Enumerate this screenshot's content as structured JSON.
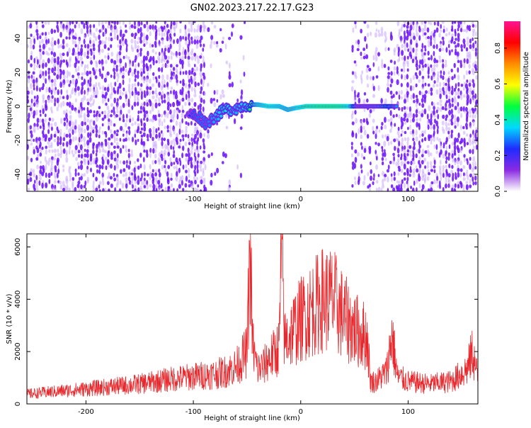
{
  "title": "GN02.2023.217.22.17.G23",
  "colors": {
    "background": "#ffffff",
    "axis": "#000000",
    "snr_line": "#e8282c",
    "spec_bg_dot": "#6a0dff",
    "spec_light_dot": "#c9a8ff"
  },
  "chart_data": [
    {
      "type": "heatmap",
      "title": "GN02.2023.217.22.17.G23",
      "xlabel": "Height of straight line (km)",
      "ylabel": "Frequency (Hz)",
      "xlim": [
        -255,
        165
      ],
      "ylim": [
        -50,
        50
      ],
      "xticks": [
        -200,
        -100,
        0,
        100
      ],
      "xtick_labels": [
        "-200",
        "-100",
        "0",
        "100"
      ],
      "yticks": [
        -40,
        -20,
        0,
        20,
        40
      ],
      "ytick_labels": [
        "-40",
        "-20",
        "0",
        "20",
        "40"
      ],
      "colorbar": {
        "label": "Normalized spectral amplitude",
        "range": [
          0,
          0.95
        ],
        "ticks": [
          0.0,
          0.2,
          0.4,
          0.6,
          0.8
        ],
        "tick_labels": [
          "0.0",
          "0.2",
          "0.4",
          "0.6",
          "0.8"
        ],
        "colormap": [
          "#ffffff",
          "#8a2be2",
          "#1f2bff",
          "#00d9ff",
          "#00ff3c",
          "#ffff00",
          "#ff8c00",
          "#ff0000",
          "#ff1493"
        ]
      },
      "noise_regions": [
        {
          "x": [
            -255,
            -90
          ],
          "density": "dense"
        },
        {
          "x": [
            -90,
            -50
          ],
          "density": "light"
        },
        {
          "x": [
            -50,
            47
          ],
          "density": "empty"
        },
        {
          "x": [
            47,
            90
          ],
          "density": "medium"
        },
        {
          "x": [
            90,
            165
          ],
          "density": "dense"
        }
      ],
      "signal_track": [
        {
          "x": -105,
          "freq": -4,
          "amp": 0.25
        },
        {
          "x": -95,
          "freq": -6,
          "amp": 0.3
        },
        {
          "x": -88,
          "freq": -10,
          "amp": 0.3
        },
        {
          "x": -80,
          "freq": -6,
          "amp": 0.35
        },
        {
          "x": -70,
          "freq": -2,
          "amp": 0.4
        },
        {
          "x": -60,
          "freq": -1,
          "amp": 0.35
        },
        {
          "x": -50,
          "freq": 1,
          "amp": 0.4
        },
        {
          "x": -40,
          "freq": 1,
          "amp": 0.75
        },
        {
          "x": -30,
          "freq": 0,
          "amp": 0.85
        },
        {
          "x": -20,
          "freq": 0,
          "amp": 0.8
        },
        {
          "x": -12,
          "freq": -2,
          "amp": 0.75
        },
        {
          "x": -5,
          "freq": -1,
          "amp": 0.8
        },
        {
          "x": 5,
          "freq": 0,
          "amp": 0.9
        },
        {
          "x": 20,
          "freq": 0,
          "amp": 0.95
        },
        {
          "x": 35,
          "freq": 0,
          "amp": 0.95
        },
        {
          "x": 45,
          "freq": 0,
          "amp": 0.85
        },
        {
          "x": 53,
          "freq": 0,
          "amp": 0.3
        },
        {
          "x": 72,
          "freq": 0,
          "amp": 0.35
        },
        {
          "x": 82,
          "freq": 0,
          "amp": 0.55
        },
        {
          "x": 90,
          "freq": 0,
          "amp": 0.3
        }
      ]
    },
    {
      "type": "line",
      "xlabel": "Height of straight line (km)",
      "ylabel": "SNR (10 * v/v)",
      "xlim": [
        -255,
        165
      ],
      "ylim": [
        0,
        6500
      ],
      "xticks": [
        -200,
        -100,
        0,
        100
      ],
      "xtick_labels": [
        "-200",
        "-100",
        "0",
        "100"
      ],
      "yticks": [
        0,
        2000,
        4000,
        6000
      ],
      "ytick_labels": [
        "0",
        "2000",
        "4000",
        "6000"
      ],
      "series": [
        {
          "x": [
            -255,
            -200,
            -150,
            -120,
            -100,
            -80,
            -70,
            -60,
            -55,
            -50,
            -47,
            -45,
            -42,
            -40,
            -35,
            -30,
            -25,
            -20,
            -18,
            -15,
            -10,
            0,
            10,
            20,
            30,
            40,
            50,
            58,
            62,
            65,
            70,
            80,
            85,
            90,
            100,
            120,
            140,
            155,
            160,
            165
          ],
          "y": [
            400,
            600,
            800,
            1000,
            1100,
            1200,
            1300,
            1500,
            1800,
            2100,
            6500,
            2500,
            1700,
            1400,
            1500,
            1800,
            2000,
            2300,
            6400,
            2500,
            2800,
            3400,
            3800,
            4200,
            4200,
            3500,
            3000,
            2800,
            2600,
            900,
            900,
            1300,
            2800,
            1100,
            900,
            800,
            900,
            1400,
            2100,
            1000
          ]
        }
      ]
    }
  ]
}
